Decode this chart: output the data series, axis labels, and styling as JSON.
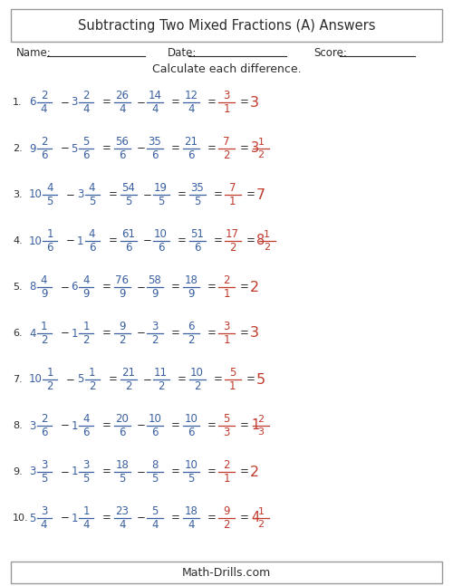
{
  "title": "Subtracting Two Mixed Fractions (A) Answers",
  "instruction": "Calculate each difference.",
  "bg_color": "#ffffff",
  "text_color_black": "#2c2c2c",
  "text_color_blue": "#3a5fa0",
  "text_color_red": "#c0392b",
  "footer": "Math-Drills.com",
  "problems": [
    {
      "num": "1.",
      "mixed1_whole": "6",
      "mixed1_num": "2",
      "mixed1_den": "4",
      "mixed2_whole": "3",
      "mixed2_num": "2",
      "mixed2_den": "4",
      "imp1_num": "26",
      "imp1_den": "4",
      "imp2_num": "14",
      "imp2_den": "4",
      "diff_num": "12",
      "diff_den": "4",
      "simp_num": "3",
      "simp_den": "1",
      "final_whole": "3",
      "final_num": "",
      "final_den": ""
    },
    {
      "num": "2.",
      "mixed1_whole": "9",
      "mixed1_num": "2",
      "mixed1_den": "6",
      "mixed2_whole": "5",
      "mixed2_num": "5",
      "mixed2_den": "6",
      "imp1_num": "56",
      "imp1_den": "6",
      "imp2_num": "35",
      "imp2_den": "6",
      "diff_num": "21",
      "diff_den": "6",
      "simp_num": "7",
      "simp_den": "2",
      "final_whole": "3",
      "final_num": "1",
      "final_den": "2"
    },
    {
      "num": "3.",
      "mixed1_whole": "10",
      "mixed1_num": "4",
      "mixed1_den": "5",
      "mixed2_whole": "3",
      "mixed2_num": "4",
      "mixed2_den": "5",
      "imp1_num": "54",
      "imp1_den": "5",
      "imp2_num": "19",
      "imp2_den": "5",
      "diff_num": "35",
      "diff_den": "5",
      "simp_num": "7",
      "simp_den": "1",
      "final_whole": "7",
      "final_num": "",
      "final_den": ""
    },
    {
      "num": "4.",
      "mixed1_whole": "10",
      "mixed1_num": "1",
      "mixed1_den": "6",
      "mixed2_whole": "1",
      "mixed2_num": "4",
      "mixed2_den": "6",
      "imp1_num": "61",
      "imp1_den": "6",
      "imp2_num": "10",
      "imp2_den": "6",
      "diff_num": "51",
      "diff_den": "6",
      "simp_num": "17",
      "simp_den": "2",
      "final_whole": "8",
      "final_num": "1",
      "final_den": "2"
    },
    {
      "num": "5.",
      "mixed1_whole": "8",
      "mixed1_num": "4",
      "mixed1_den": "9",
      "mixed2_whole": "6",
      "mixed2_num": "4",
      "mixed2_den": "9",
      "imp1_num": "76",
      "imp1_den": "9",
      "imp2_num": "58",
      "imp2_den": "9",
      "diff_num": "18",
      "diff_den": "9",
      "simp_num": "2",
      "simp_den": "1",
      "final_whole": "2",
      "final_num": "",
      "final_den": ""
    },
    {
      "num": "6.",
      "mixed1_whole": "4",
      "mixed1_num": "1",
      "mixed1_den": "2",
      "mixed2_whole": "1",
      "mixed2_num": "1",
      "mixed2_den": "2",
      "imp1_num": "9",
      "imp1_den": "2",
      "imp2_num": "3",
      "imp2_den": "2",
      "diff_num": "6",
      "diff_den": "2",
      "simp_num": "3",
      "simp_den": "1",
      "final_whole": "3",
      "final_num": "",
      "final_den": ""
    },
    {
      "num": "7.",
      "mixed1_whole": "10",
      "mixed1_num": "1",
      "mixed1_den": "2",
      "mixed2_whole": "5",
      "mixed2_num": "1",
      "mixed2_den": "2",
      "imp1_num": "21",
      "imp1_den": "2",
      "imp2_num": "11",
      "imp2_den": "2",
      "diff_num": "10",
      "diff_den": "2",
      "simp_num": "5",
      "simp_den": "1",
      "final_whole": "5",
      "final_num": "",
      "final_den": ""
    },
    {
      "num": "8.",
      "mixed1_whole": "3",
      "mixed1_num": "2",
      "mixed1_den": "6",
      "mixed2_whole": "1",
      "mixed2_num": "4",
      "mixed2_den": "6",
      "imp1_num": "20",
      "imp1_den": "6",
      "imp2_num": "10",
      "imp2_den": "6",
      "diff_num": "10",
      "diff_den": "6",
      "simp_num": "5",
      "simp_den": "3",
      "final_whole": "1",
      "final_num": "2",
      "final_den": "3"
    },
    {
      "num": "9.",
      "mixed1_whole": "3",
      "mixed1_num": "3",
      "mixed1_den": "5",
      "mixed2_whole": "1",
      "mixed2_num": "3",
      "mixed2_den": "5",
      "imp1_num": "18",
      "imp1_den": "5",
      "imp2_num": "8",
      "imp2_den": "5",
      "diff_num": "10",
      "diff_den": "5",
      "simp_num": "2",
      "simp_den": "1",
      "final_whole": "2",
      "final_num": "",
      "final_den": ""
    },
    {
      "num": "10.",
      "mixed1_whole": "5",
      "mixed1_num": "3",
      "mixed1_den": "4",
      "mixed2_whole": "1",
      "mixed2_num": "1",
      "mixed2_den": "4",
      "imp1_num": "23",
      "imp1_den": "4",
      "imp2_num": "5",
      "imp2_den": "4",
      "diff_num": "18",
      "diff_den": "4",
      "simp_num": "9",
      "simp_den": "2",
      "final_whole": "4",
      "final_num": "1",
      "final_den": "2"
    }
  ]
}
